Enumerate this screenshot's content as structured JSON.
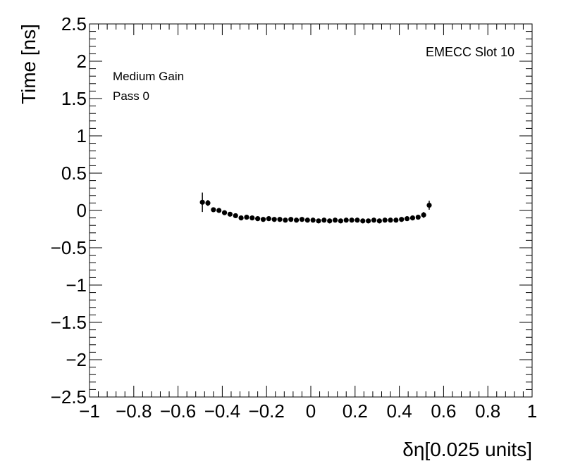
{
  "chart_data": {
    "type": "scatter",
    "xlabel": "δη[0.025 units]",
    "ylabel": "Time [ns]",
    "xlim": [
      -1,
      1
    ],
    "ylim": [
      -2.5,
      2.5
    ],
    "x_ticks": [
      "−1",
      "−0.8",
      "−0.6",
      "−0.4",
      "−0.2",
      "0",
      "0.2",
      "0.4",
      "0.6",
      "0.8",
      "1"
    ],
    "y_ticks": [
      "2.5",
      "2",
      "1.5",
      "1",
      "0.5",
      "0",
      "−0.5",
      "−1",
      "−1.5",
      "−2",
      "−2.5"
    ],
    "annotations": {
      "slot": "EMECC Slot 10",
      "gain": "Medium Gain",
      "pass": "Pass 0"
    },
    "grid": false,
    "series": [
      {
        "x": [
          -0.49,
          -0.465,
          -0.44,
          -0.415,
          -0.39,
          -0.365,
          -0.34,
          -0.315,
          -0.29,
          -0.265,
          -0.24,
          -0.215,
          -0.19,
          -0.165,
          -0.14,
          -0.115,
          -0.09,
          -0.065,
          -0.04,
          -0.015,
          0.01,
          0.035,
          0.06,
          0.085,
          0.11,
          0.135,
          0.16,
          0.185,
          0.21,
          0.235,
          0.26,
          0.285,
          0.31,
          0.335,
          0.36,
          0.385,
          0.41,
          0.435,
          0.46,
          0.485,
          0.51,
          0.535
        ],
        "y": [
          0.11,
          0.1,
          0.01,
          0.0,
          -0.03,
          -0.05,
          -0.07,
          -0.1,
          -0.09,
          -0.1,
          -0.11,
          -0.12,
          -0.11,
          -0.12,
          -0.12,
          -0.13,
          -0.12,
          -0.13,
          -0.12,
          -0.13,
          -0.13,
          -0.14,
          -0.13,
          -0.14,
          -0.13,
          -0.14,
          -0.13,
          -0.13,
          -0.13,
          -0.14,
          -0.14,
          -0.13,
          -0.14,
          -0.13,
          -0.13,
          -0.13,
          -0.12,
          -0.11,
          -0.1,
          -0.09,
          -0.06,
          0.07
        ],
        "err": [
          0.13,
          0.04,
          0.03,
          0.03,
          0.03,
          0.03,
          0.03,
          0.03,
          0.03,
          0.03,
          0.03,
          0.03,
          0.03,
          0.03,
          0.03,
          0.03,
          0.03,
          0.03,
          0.03,
          0.03,
          0.03,
          0.03,
          0.03,
          0.03,
          0.03,
          0.03,
          0.03,
          0.03,
          0.03,
          0.03,
          0.03,
          0.03,
          0.03,
          0.03,
          0.03,
          0.03,
          0.03,
          0.03,
          0.03,
          0.03,
          0.04,
          0.06
        ]
      }
    ]
  }
}
